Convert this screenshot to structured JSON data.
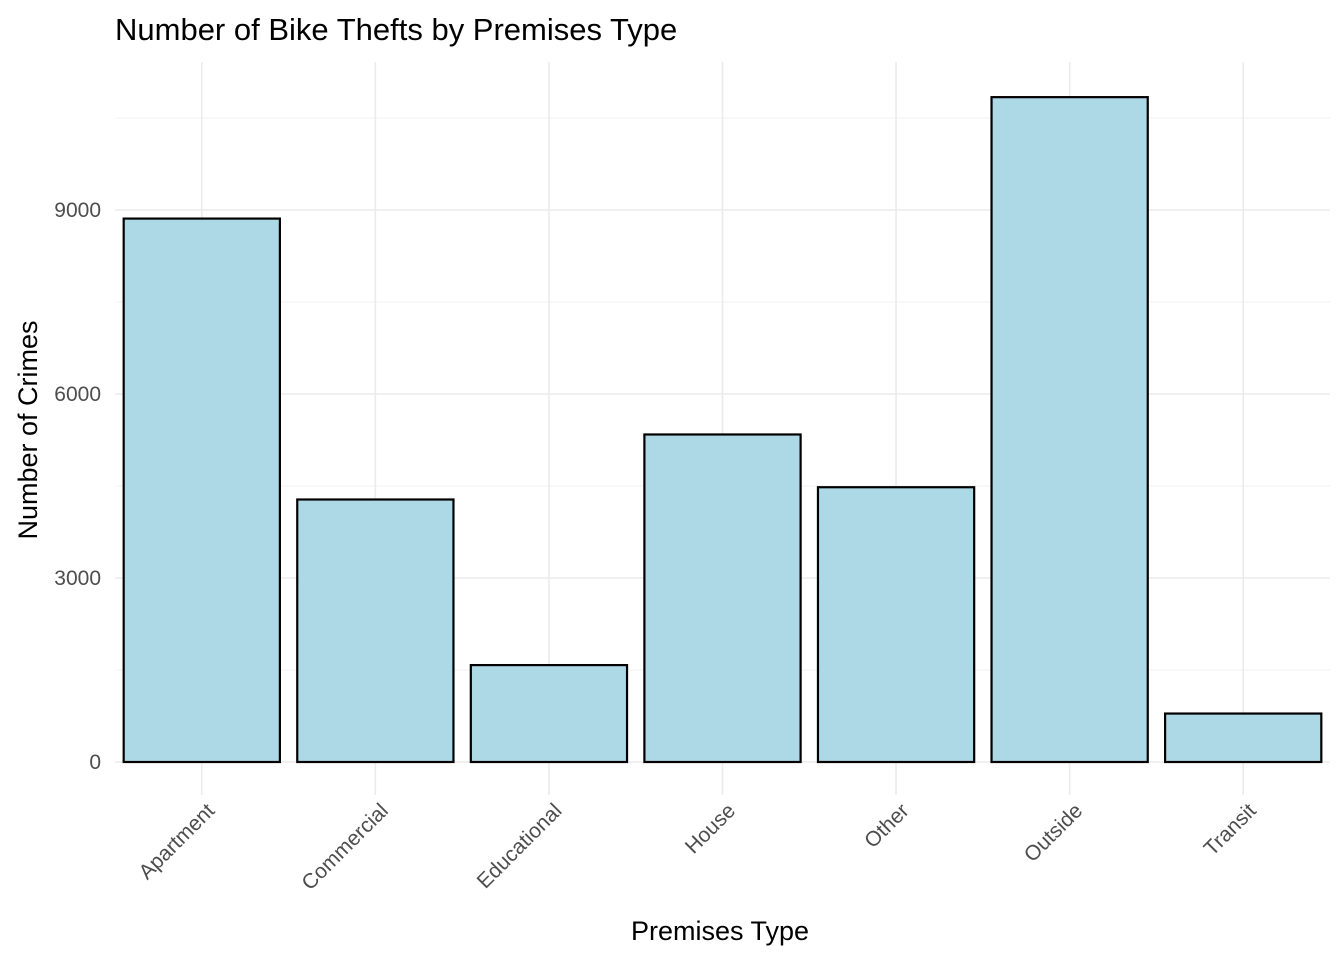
{
  "chart_data": {
    "type": "bar",
    "title": "Number of Bike Thefts by Premises Type",
    "xlabel": "Premises Type",
    "ylabel": "Number of Crimes",
    "categories": [
      "Apartment",
      "Commercial",
      "Educational",
      "House",
      "Other",
      "Outside",
      "Transit"
    ],
    "values": [
      8860,
      4280,
      1580,
      5340,
      4480,
      10840,
      790
    ],
    "yticks": [
      0,
      3000,
      6000,
      9000
    ],
    "ytick_labels": [
      "0",
      "3000",
      "6000",
      "9000"
    ],
    "ylim": [
      0,
      11400
    ],
    "grid": true,
    "legend": "none",
    "colors": {
      "bar_fill": "#add8e6",
      "bar_stroke": "#000000"
    }
  }
}
